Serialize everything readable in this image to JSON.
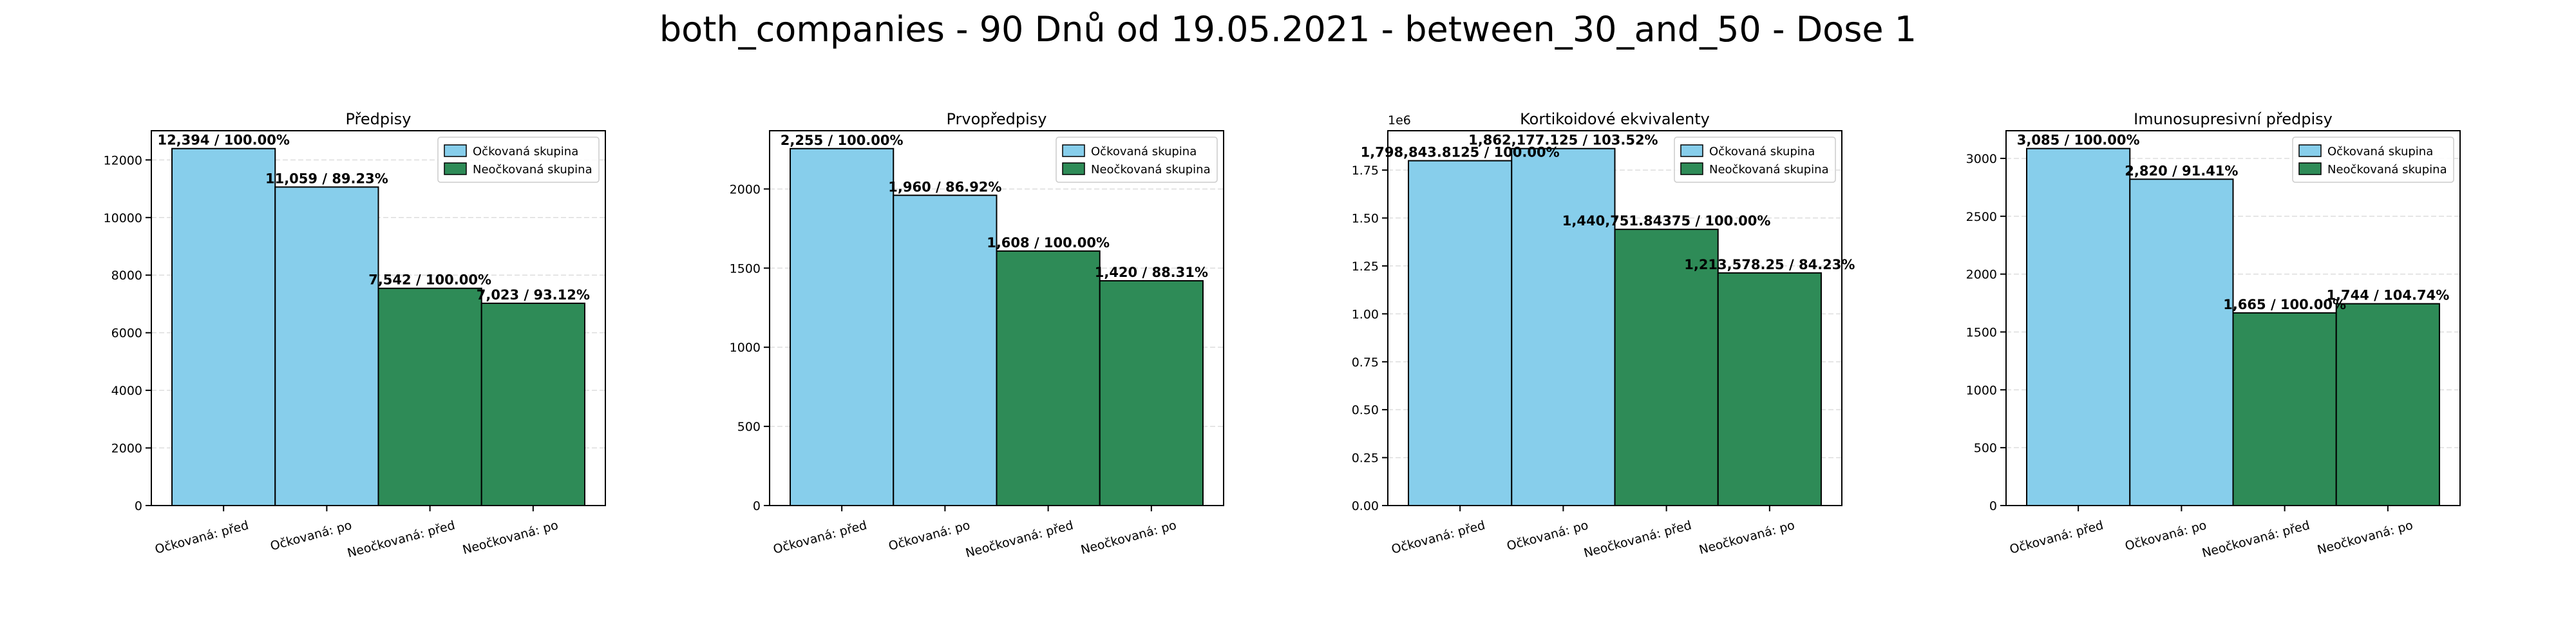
{
  "suptitle": "both_companies - 90 Dnů od 19.05.2021 - between_30_and_50 - Dose 1",
  "colors": {
    "vaccinated": "#87CEEB",
    "unvaccinated": "#2E8B57",
    "edge": "#000000",
    "grid": "#dddddd"
  },
  "chart_data": [
    {
      "type": "bar",
      "title": "Předpisy",
      "categories": [
        "Očkovaná: před",
        "Očkovaná: po",
        "Neočkovaná: před",
        "Neočkovaná: po"
      ],
      "values": [
        12394,
        11059,
        7542,
        7023
      ],
      "data_labels": [
        "12,394 / 100.00%",
        "11,059 / 89.23%",
        "7,542 / 100.00%",
        "7,023 / 93.12%"
      ],
      "groups": [
        "vaccinated",
        "vaccinated",
        "unvaccinated",
        "unvaccinated"
      ],
      "ylim": [
        0,
        13014
      ],
      "yticks": [
        0,
        2000,
        4000,
        6000,
        8000,
        10000,
        12000
      ],
      "ytick_labels": [
        "0",
        "2000",
        "4000",
        "6000",
        "8000",
        "10000",
        "12000"
      ],
      "scale_label": "",
      "legend": [
        "Očkovaná skupina",
        "Neočkovaná skupina"
      ],
      "legend_position": "top-right",
      "grid": true
    },
    {
      "type": "bar",
      "title": "Prvopředpisy",
      "categories": [
        "Očkovaná: před",
        "Očkovaná: po",
        "Neočkovaná: před",
        "Neočkovaná: po"
      ],
      "values": [
        2255,
        1960,
        1608,
        1420
      ],
      "data_labels": [
        "2,255 / 100.00%",
        "1,960 / 86.92%",
        "1,608 / 100.00%",
        "1,420 / 88.31%"
      ],
      "groups": [
        "vaccinated",
        "vaccinated",
        "unvaccinated",
        "unvaccinated"
      ],
      "ylim": [
        0,
        2368
      ],
      "yticks": [
        0,
        500,
        1000,
        1500,
        2000
      ],
      "ytick_labels": [
        "0",
        "500",
        "1000",
        "1500",
        "2000"
      ],
      "scale_label": "",
      "legend": [
        "Očkovaná skupina",
        "Neočkovaná skupina"
      ],
      "legend_position": "top-right",
      "grid": true
    },
    {
      "type": "bar",
      "title": "Kortikoidové ekvivalenty",
      "categories": [
        "Očkovaná: před",
        "Očkovaná: po",
        "Neočkovaná: před",
        "Neočkovaná: po"
      ],
      "values": [
        1798843.8125,
        1862177.125,
        1440751.84375,
        1213578.25
      ],
      "data_labels": [
        "1,798,843.8125 / 100.00%",
        "1,862,177.125 / 103.52%",
        "1,440,751.84375 / 100.00%",
        "1,213,578.25 / 84.23%"
      ],
      "groups": [
        "vaccinated",
        "vaccinated",
        "unvaccinated",
        "unvaccinated"
      ],
      "ylim": [
        0,
        1955286
      ],
      "yticks": [
        0,
        250000,
        500000,
        750000,
        1000000,
        1250000,
        1500000,
        1750000
      ],
      "ytick_labels": [
        "0.00",
        "0.25",
        "0.50",
        "0.75",
        "1.00",
        "1.25",
        "1.50",
        "1.75"
      ],
      "scale_label": "1e6",
      "legend": [
        "Očkovaná skupina",
        "Neočkovaná skupina"
      ],
      "legend_position": "top-right",
      "grid": true
    },
    {
      "type": "bar",
      "title": "Imunosupresivní předpisy",
      "categories": [
        "Očkovaná: před",
        "Očkovaná: po",
        "Neočkovaná: před",
        "Neočkovaná: po"
      ],
      "values": [
        3085,
        2820,
        1665,
        1744
      ],
      "data_labels": [
        "3,085 / 100.00%",
        "2,820 / 91.41%",
        "1,665 / 100.00%",
        "1,744 / 104.74%"
      ],
      "groups": [
        "vaccinated",
        "vaccinated",
        "unvaccinated",
        "unvaccinated"
      ],
      "ylim": [
        0,
        3239
      ],
      "yticks": [
        0,
        500,
        1000,
        1500,
        2000,
        2500,
        3000
      ],
      "ytick_labels": [
        "0",
        "500",
        "1000",
        "1500",
        "2000",
        "2500",
        "3000"
      ],
      "scale_label": "",
      "legend": [
        "Očkovaná skupina",
        "Neočkovaná skupina"
      ],
      "legend_position": "top-right",
      "grid": true
    }
  ]
}
